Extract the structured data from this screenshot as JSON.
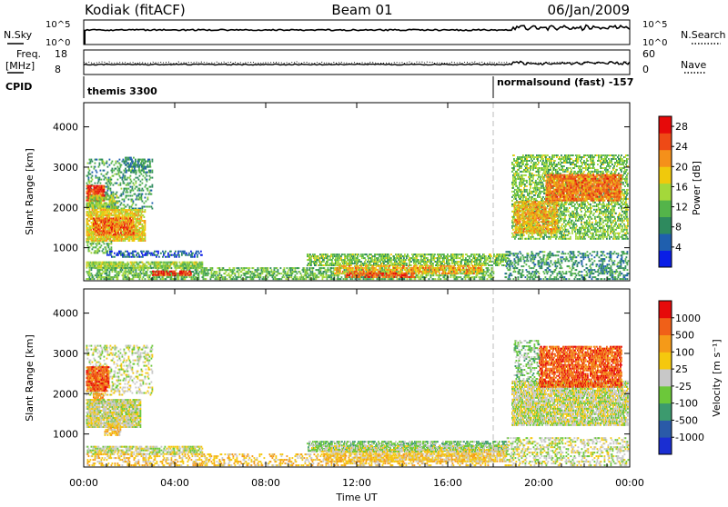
{
  "header": {
    "station": "Kodiak (fitACF)",
    "beam": "Beam 01",
    "date": "06/Jan/2009"
  },
  "strips": {
    "nsky_label": "N.Sky",
    "nsearch_label": "N.Search",
    "nsky_ticks": [
      "10^5",
      "10^0"
    ],
    "nsearch_ticks": [
      "10^5",
      "10^0"
    ],
    "freq_label": "Freq.",
    "freq_unit": "[MHz]",
    "freq_ticks": [
      "18",
      "8"
    ],
    "nave_label": "Nave",
    "nave_ticks": [
      "60",
      "0"
    ],
    "cpid_label": "CPID",
    "cpid_segments": [
      {
        "name": "themis 3300",
        "start": 0
      },
      {
        "name": "normalsound (fast) -157",
        "start": 18.0
      }
    ]
  },
  "colors": {
    "power_scale": [
      "#0a1ee6",
      "#1f5fae",
      "#2e8a5e",
      "#54b44a",
      "#a4d83a",
      "#f0c90c",
      "#f5901a",
      "#ee4a16",
      "#e60a0a"
    ],
    "velocity_scale": [
      "#e60a0a",
      "#f06018",
      "#f59a18",
      "#f5c80e",
      "#c8c8c8",
      "#6cc83a",
      "#3c9a6e",
      "#2a5aa8",
      "#1a2ed2"
    ],
    "grid_dash": "#bbbbbb"
  },
  "chart_data": [
    {
      "type": "heatmap",
      "name": "power",
      "xlabel": "",
      "ylabel": "Slant Range [km]",
      "xlim": [
        0,
        24
      ],
      "ylim": [
        180,
        4600
      ],
      "yticks": [
        1000,
        2000,
        3000,
        4000
      ],
      "colorbar": {
        "label": "Power [dB]",
        "ticks": [
          "4",
          "8",
          "12",
          "16",
          "20",
          "24",
          "28"
        ],
        "range": [
          0,
          30
        ]
      },
      "regions": [
        {
          "t0": 0.1,
          "t1": 3.0,
          "r0": 1950,
          "r1": 3200,
          "v": 10,
          "cov": 0.25
        },
        {
          "t0": 0.1,
          "t1": 0.9,
          "r0": 2150,
          "r1": 2550,
          "v": 26,
          "cov": 0.85
        },
        {
          "t0": 0.1,
          "t1": 1.5,
          "r0": 1950,
          "r1": 2300,
          "v": 15,
          "cov": 0.5
        },
        {
          "t0": 0.1,
          "t1": 2.7,
          "r0": 1150,
          "r1": 1950,
          "v": 18,
          "cov": 0.7
        },
        {
          "t0": 0.4,
          "t1": 2.2,
          "r0": 1300,
          "r1": 1750,
          "v": 24,
          "cov": 0.55
        },
        {
          "t0": 0.1,
          "t1": 1.2,
          "r0": 850,
          "r1": 1150,
          "v": 12,
          "cov": 0.35
        },
        {
          "t0": 1.8,
          "t1": 2.9,
          "r0": 2850,
          "r1": 3250,
          "v": 8,
          "cov": 0.4
        },
        {
          "t0": 1.0,
          "t1": 5.2,
          "r0": 750,
          "r1": 900,
          "v": 5,
          "cov": 0.35
        },
        {
          "t0": 0.1,
          "t1": 5.2,
          "r0": 480,
          "r1": 650,
          "v": 14,
          "cov": 0.7
        },
        {
          "t0": 0.1,
          "t1": 18.0,
          "r0": 200,
          "r1": 480,
          "v": 12,
          "cov": 0.45
        },
        {
          "t0": 3.0,
          "t1": 4.7,
          "r0": 300,
          "r1": 420,
          "v": 27,
          "cov": 0.6
        },
        {
          "t0": 9.8,
          "t1": 18.6,
          "r0": 540,
          "r1": 820,
          "v": 13,
          "cov": 0.55
        },
        {
          "t0": 11.0,
          "t1": 17.5,
          "r0": 340,
          "r1": 560,
          "v": 20,
          "cov": 0.55
        },
        {
          "t0": 11.5,
          "t1": 14.5,
          "r0": 250,
          "r1": 380,
          "v": 26,
          "cov": 0.5
        },
        {
          "t0": 18.8,
          "t1": 23.9,
          "r0": 1200,
          "r1": 3300,
          "v": 13,
          "cov": 0.45
        },
        {
          "t0": 20.3,
          "t1": 23.6,
          "r0": 2150,
          "r1": 2800,
          "v": 23,
          "cov": 0.7
        },
        {
          "t0": 18.9,
          "t1": 20.8,
          "r0": 1350,
          "r1": 2150,
          "v": 20,
          "cov": 0.6
        },
        {
          "t0": 18.5,
          "t1": 23.9,
          "r0": 200,
          "r1": 900,
          "v": 9,
          "cov": 0.3
        }
      ]
    },
    {
      "type": "heatmap",
      "name": "velocity",
      "xlabel": "Time UT",
      "ylabel": "Slant Range [km]",
      "xlim": [
        0,
        24
      ],
      "ylim": [
        180,
        4600
      ],
      "xticks": [
        "00:00",
        "04:00",
        "08:00",
        "12:00",
        "16:00",
        "20:00",
        "00:00"
      ],
      "yticks": [
        1000,
        2000,
        3000,
        4000
      ],
      "colorbar": {
        "label": "Velocity [m s⁻¹]",
        "ticks": [
          "1000",
          "500",
          "100",
          "25",
          "-25",
          "-100",
          "-500",
          "-1000"
        ]
      },
      "regions": [
        {
          "t0": 0.1,
          "t1": 3.0,
          "r0": 1950,
          "r1": 3200,
          "v": 4,
          "cov": 0.25
        },
        {
          "t0": 0.1,
          "t1": 1.1,
          "r0": 2050,
          "r1": 2650,
          "v": 1,
          "cov": 0.75
        },
        {
          "t0": 0.4,
          "t1": 0.9,
          "r0": 1750,
          "r1": 2000,
          "v": 2,
          "cov": 0.6
        },
        {
          "t0": 0.1,
          "t1": 2.5,
          "r0": 1150,
          "r1": 1850,
          "v": 4,
          "cov": 0.8
        },
        {
          "t0": 0.9,
          "t1": 1.6,
          "r0": 950,
          "r1": 1250,
          "v": 3,
          "cov": 0.6
        },
        {
          "t0": 0.1,
          "t1": 5.2,
          "r0": 480,
          "r1": 700,
          "v": 4,
          "cov": 0.6
        },
        {
          "t0": 0.1,
          "t1": 18.0,
          "r0": 200,
          "r1": 480,
          "v": 3,
          "cov": 0.3
        },
        {
          "t0": 9.8,
          "t1": 18.6,
          "r0": 560,
          "r1": 820,
          "v": 5,
          "cov": 0.55
        },
        {
          "t0": 10.5,
          "t1": 18.6,
          "r0": 300,
          "r1": 580,
          "v": 3,
          "cov": 0.55
        },
        {
          "t0": 10.0,
          "t1": 18.6,
          "r0": 540,
          "r1": 700,
          "v": 4,
          "cov": 0.5
        },
        {
          "t0": 18.8,
          "t1": 23.9,
          "r0": 1200,
          "r1": 2300,
          "v": 4,
          "cov": 0.75
        },
        {
          "t0": 20.0,
          "t1": 23.6,
          "r0": 2150,
          "r1": 3150,
          "v": 1,
          "cov": 0.7
        },
        {
          "t0": 18.9,
          "t1": 20.0,
          "r0": 2300,
          "r1": 3300,
          "v": 5,
          "cov": 0.3
        },
        {
          "t0": 18.5,
          "t1": 23.9,
          "r0": 200,
          "r1": 900,
          "v": 4,
          "cov": 0.3
        }
      ]
    }
  ]
}
